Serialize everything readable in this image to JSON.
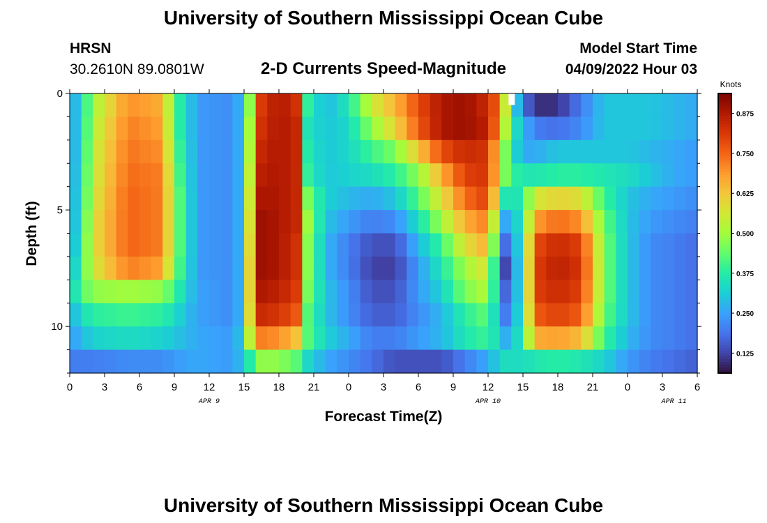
{
  "header": {
    "main_title": "University of Southern Mississippi Ocean Cube",
    "station_name": "HRSN",
    "station_coords": "30.2610N  89.0801W",
    "subtitle": "2-D Currents Speed-Magnitude",
    "model_start_label": "Model Start Time",
    "model_start_value": "04/09/2022 Hour 03",
    "footer_title": "University of Southern Mississippi Ocean Cube"
  },
  "chart_data": {
    "type": "heatmap",
    "title": "2-D Currents Speed-Magnitude",
    "xlabel": "Forecast Time(Z)",
    "ylabel": "Depth (ft)",
    "x_tick_labels": [
      "0",
      "3",
      "6",
      "9",
      "12",
      "15",
      "18",
      "21",
      "0",
      "3",
      "6",
      "9",
      "12",
      "15",
      "18",
      "21",
      "0",
      "3",
      "6"
    ],
    "x_range_hours": [
      0,
      54
    ],
    "date_labels": [
      {
        "text": "APR 9",
        "hour": 12
      },
      {
        "text": "APR 10",
        "hour": 36
      },
      {
        "text": "APR 11",
        "hour": 52
      }
    ],
    "y_ticks": [
      0,
      5,
      10
    ],
    "y_range_ft": [
      0,
      12
    ],
    "y_reversed": true,
    "colorbar": {
      "unit": "Knots",
      "min": 0.0625,
      "max": 0.9375,
      "ticks": [
        "0.875",
        "0.750",
        "0.625",
        "0.500",
        "0.375",
        "0.250",
        "0.125"
      ],
      "tick_values": [
        0.875,
        0.75,
        0.625,
        0.5,
        0.375,
        0.25,
        0.125
      ],
      "colormap": [
        "#30123b",
        "#4145ab",
        "#4675ed",
        "#39a2fc",
        "#1bcfd4",
        "#24eca6",
        "#61fc6c",
        "#a4fc3b",
        "#d1e834",
        "#f3c63a",
        "#fe9b2d",
        "#f36315",
        "#d93806",
        "#b11901",
        "#7a0403"
      ]
    },
    "depth_levels_ft": [
      0.5,
      1.5,
      2.5,
      3.5,
      4.5,
      5.5,
      6.5,
      7.5,
      8.5,
      9.5,
      10.5,
      11.5
    ],
    "control_times_hours": [
      0,
      1,
      2,
      5,
      8,
      9,
      11,
      14,
      15,
      15.7,
      16.3,
      18,
      19.7,
      20.3,
      22,
      24,
      26,
      28,
      30,
      32,
      34,
      36,
      37.2,
      37.8,
      39,
      40,
      42,
      44,
      46,
      48,
      50,
      52,
      54
    ],
    "speed_knots": [
      [
        0.24,
        0.33,
        0.5,
        0.7,
        0.66,
        0.42,
        0.24,
        0.22,
        0.3,
        0.55,
        0.8,
        0.88,
        0.82,
        0.4,
        0.28,
        0.36,
        0.55,
        0.65,
        0.78,
        0.88,
        0.9,
        0.84,
        0.7,
        0.4,
        0.2,
        0.1,
        0.1,
        0.2,
        0.3,
        0.3,
        0.3,
        0.28,
        0.26
      ],
      [
        0.24,
        0.33,
        0.52,
        0.72,
        0.68,
        0.42,
        0.24,
        0.22,
        0.3,
        0.58,
        0.82,
        0.88,
        0.84,
        0.36,
        0.3,
        0.33,
        0.48,
        0.6,
        0.76,
        0.88,
        0.9,
        0.86,
        0.64,
        0.4,
        0.28,
        0.2,
        0.18,
        0.22,
        0.3,
        0.3,
        0.3,
        0.28,
        0.26
      ],
      [
        0.24,
        0.33,
        0.54,
        0.73,
        0.7,
        0.44,
        0.24,
        0.22,
        0.3,
        0.6,
        0.84,
        0.88,
        0.84,
        0.38,
        0.3,
        0.33,
        0.4,
        0.46,
        0.62,
        0.78,
        0.84,
        0.82,
        0.54,
        0.38,
        0.26,
        0.26,
        0.3,
        0.3,
        0.3,
        0.3,
        0.28,
        0.26,
        0.24
      ],
      [
        0.24,
        0.34,
        0.55,
        0.74,
        0.72,
        0.46,
        0.24,
        0.22,
        0.3,
        0.63,
        0.86,
        0.88,
        0.84,
        0.4,
        0.3,
        0.32,
        0.34,
        0.38,
        0.48,
        0.66,
        0.8,
        0.82,
        0.52,
        0.4,
        0.36,
        0.36,
        0.38,
        0.38,
        0.36,
        0.34,
        0.3,
        0.26,
        0.24
      ],
      [
        0.24,
        0.35,
        0.56,
        0.75,
        0.72,
        0.48,
        0.24,
        0.22,
        0.3,
        0.66,
        0.88,
        0.88,
        0.84,
        0.48,
        0.32,
        0.28,
        0.26,
        0.3,
        0.42,
        0.58,
        0.74,
        0.8,
        0.42,
        0.3,
        0.4,
        0.56,
        0.6,
        0.58,
        0.4,
        0.3,
        0.26,
        0.24,
        0.22
      ],
      [
        0.24,
        0.36,
        0.58,
        0.75,
        0.72,
        0.48,
        0.24,
        0.22,
        0.3,
        0.68,
        0.9,
        0.88,
        0.84,
        0.52,
        0.3,
        0.24,
        0.2,
        0.22,
        0.34,
        0.5,
        0.66,
        0.72,
        0.3,
        0.22,
        0.4,
        0.68,
        0.74,
        0.7,
        0.44,
        0.3,
        0.24,
        0.22,
        0.2
      ],
      [
        0.24,
        0.38,
        0.58,
        0.75,
        0.72,
        0.48,
        0.24,
        0.22,
        0.3,
        0.7,
        0.9,
        0.88,
        0.82,
        0.5,
        0.28,
        0.2,
        0.14,
        0.14,
        0.28,
        0.4,
        0.58,
        0.66,
        0.2,
        0.16,
        0.4,
        0.78,
        0.84,
        0.8,
        0.46,
        0.3,
        0.22,
        0.2,
        0.18
      ],
      [
        0.26,
        0.4,
        0.56,
        0.72,
        0.68,
        0.46,
        0.24,
        0.22,
        0.3,
        0.72,
        0.9,
        0.88,
        0.82,
        0.5,
        0.28,
        0.2,
        0.12,
        0.12,
        0.24,
        0.36,
        0.5,
        0.58,
        0.14,
        0.12,
        0.4,
        0.8,
        0.86,
        0.82,
        0.46,
        0.3,
        0.22,
        0.2,
        0.18
      ],
      [
        0.3,
        0.42,
        0.48,
        0.5,
        0.48,
        0.4,
        0.25,
        0.22,
        0.3,
        0.72,
        0.88,
        0.86,
        0.8,
        0.48,
        0.3,
        0.22,
        0.14,
        0.14,
        0.24,
        0.32,
        0.46,
        0.52,
        0.2,
        0.14,
        0.4,
        0.8,
        0.84,
        0.8,
        0.46,
        0.3,
        0.22,
        0.2,
        0.18
      ],
      [
        0.26,
        0.34,
        0.38,
        0.4,
        0.38,
        0.34,
        0.25,
        0.22,
        0.3,
        0.7,
        0.84,
        0.82,
        0.76,
        0.44,
        0.3,
        0.22,
        0.16,
        0.16,
        0.22,
        0.28,
        0.38,
        0.44,
        0.22,
        0.18,
        0.4,
        0.76,
        0.8,
        0.76,
        0.44,
        0.3,
        0.22,
        0.2,
        0.18
      ],
      [
        0.24,
        0.28,
        0.32,
        0.34,
        0.32,
        0.3,
        0.26,
        0.24,
        0.32,
        0.62,
        0.72,
        0.7,
        0.62,
        0.44,
        0.32,
        0.26,
        0.2,
        0.2,
        0.24,
        0.28,
        0.36,
        0.4,
        0.3,
        0.24,
        0.4,
        0.66,
        0.68,
        0.64,
        0.4,
        0.28,
        0.22,
        0.2,
        0.18
      ],
      [
        0.2,
        0.2,
        0.2,
        0.22,
        0.22,
        0.24,
        0.26,
        0.24,
        0.3,
        0.4,
        0.48,
        0.48,
        0.42,
        0.34,
        0.26,
        0.22,
        0.18,
        0.14,
        0.14,
        0.14,
        0.2,
        0.26,
        0.34,
        0.34,
        0.34,
        0.36,
        0.38,
        0.36,
        0.32,
        0.24,
        0.2,
        0.18,
        0.16
      ]
    ],
    "missing_cells": [
      {
        "hour": 38,
        "depth_ft": 0.25
      }
    ]
  }
}
